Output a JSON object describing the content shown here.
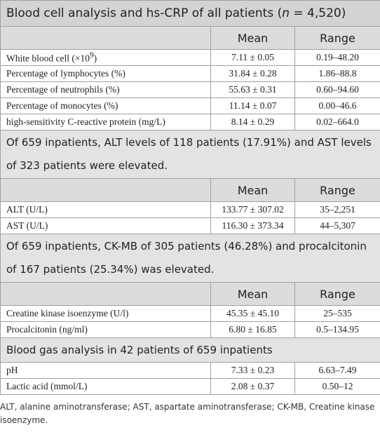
{
  "title": {
    "text": "Blood cell analysis and hs-CRP of all patients (",
    "italic": "n",
    "end": " = 4,520)"
  },
  "sections": [
    {
      "columns": [
        "Mean",
        "Range"
      ],
      "rows": [
        {
          "label": "White blood cell (×10",
          "label_sup": "9",
          "label_end": ")",
          "mean": "7.11 ± 0.05",
          "range": "0.19–48.20"
        },
        {
          "label": "Percentage of lymphocytes (%)",
          "mean": "31.84 ± 0.28",
          "range": "1.86–88.8"
        },
        {
          "label": "Percentage of neutrophils (%)",
          "mean": "55.63 ± 0.31",
          "range": "0.60–94.60"
        },
        {
          "label": "Percentage of monocytes (%)",
          "mean": "11.14 ± 0.07",
          "range": "0.00–46.6"
        },
        {
          "label": "high-sensitivity C-reactive protein (mg/L)",
          "mean": "8.14 ± 0.29",
          "range": "0.02–664.0"
        }
      ]
    },
    {
      "heading": "Of 659 inpatients, ALT levels of 118 patients (17.91%) and AST levels of 323 patients were elevated.",
      "columns": [
        "Mean",
        "Range"
      ],
      "rows": [
        {
          "label": "ALT (U/L)",
          "mean": "133.77 ± 307.02",
          "range": "35–2,251"
        },
        {
          "label": "AST (U/L)",
          "mean": "116.30 ± 373.34",
          "range": "44–5,307"
        }
      ]
    },
    {
      "heading": "Of 659 inpatients, CK-MB of 305 patients (46.28%) and procalcitonin of 167 patients (25.34%) was elevated.",
      "columns": [
        "Mean",
        "Range"
      ],
      "rows": [
        {
          "label": "Creatine kinase isoenzyme (U/l)",
          "mean": "45.35 ± 45.10",
          "range": "25–535"
        },
        {
          "label": "Procalcitonin (ng/ml)",
          "mean": "6.80 ± 16.85",
          "range": "0.5–134.95"
        }
      ]
    },
    {
      "heading": "Blood gas analysis in 42 patients of 659 inpatients",
      "rows": [
        {
          "label": "pH",
          "mean": "7.33 ± 0.23",
          "range": "6.63–7.49"
        },
        {
          "label": "Lactic acid (mmol/L)",
          "mean": "2.08 ± 0.37",
          "range": "0.50–12"
        }
      ]
    }
  ],
  "footnote": "ALT, alanine aminotransferase; AST, aspartate aminotransferase; CK-MB, Creatine kinase isoenzyme."
}
